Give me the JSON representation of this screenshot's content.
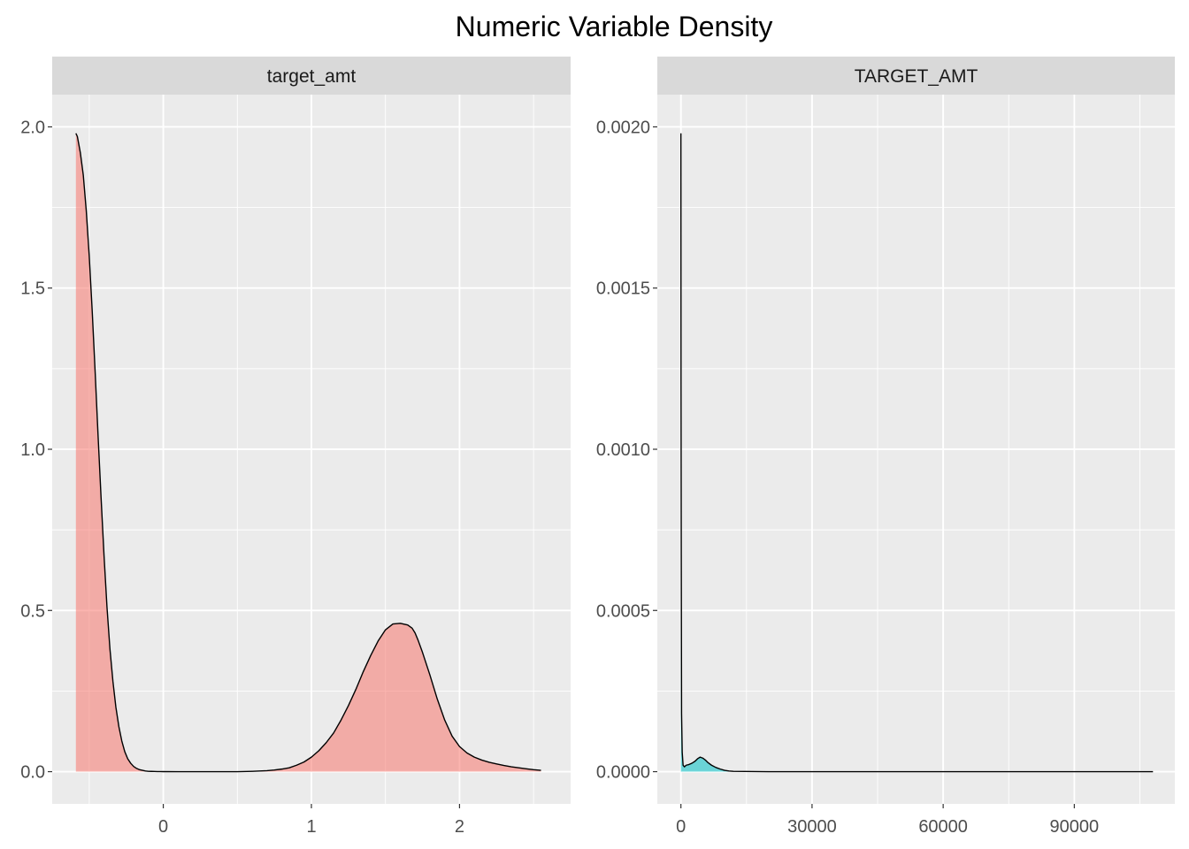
{
  "title": "Numeric Variable Density",
  "colors": {
    "panel_bg": "#ebebeb",
    "strip_bg": "#d9d9d9",
    "grid_major": "#ffffff",
    "tick": "#333333",
    "tick_text": "#4d4d4d",
    "outline": "#000000"
  },
  "chart_data": [
    {
      "type": "area",
      "facet": "target_amt",
      "fill": "#f8766d",
      "fill_opacity": 0.55,
      "xlim": [
        -0.75,
        2.75
      ],
      "ylim": [
        -0.1,
        2.1
      ],
      "x_ticks": [
        0,
        1,
        2
      ],
      "x_minor": [
        -0.5,
        0.5,
        1.5,
        2.5
      ],
      "x_tick_labels": [
        "0",
        "1",
        "2"
      ],
      "y_ticks": [
        0,
        0.5,
        1,
        1.5,
        2
      ],
      "y_minor": [
        0.25,
        0.75,
        1.25,
        1.75
      ],
      "y_tick_labels": [
        "0.0",
        "0.5",
        "1.0",
        "1.5",
        "2.0"
      ],
      "x": [
        -0.59,
        -0.58,
        -0.56,
        -0.54,
        -0.52,
        -0.5,
        -0.48,
        -0.46,
        -0.44,
        -0.42,
        -0.4,
        -0.38,
        -0.36,
        -0.34,
        -0.32,
        -0.3,
        -0.28,
        -0.26,
        -0.24,
        -0.22,
        -0.2,
        -0.18,
        -0.16,
        -0.14,
        -0.12,
        -0.1,
        -0.08,
        -0.06,
        -0.04,
        -0.02,
        0.0,
        0.1,
        0.2,
        0.3,
        0.4,
        0.5,
        0.6,
        0.7,
        0.75,
        0.8,
        0.85,
        0.9,
        0.95,
        1.0,
        1.05,
        1.1,
        1.15,
        1.2,
        1.25,
        1.3,
        1.35,
        1.4,
        1.45,
        1.5,
        1.55,
        1.6,
        1.65,
        1.68,
        1.7,
        1.72,
        1.75,
        1.8,
        1.85,
        1.9,
        1.95,
        2.0,
        2.05,
        2.1,
        2.15,
        2.2,
        2.25,
        2.3,
        2.35,
        2.4,
        2.45,
        2.5,
        2.55
      ],
      "y": [
        1.98,
        1.97,
        1.92,
        1.85,
        1.74,
        1.6,
        1.43,
        1.24,
        1.04,
        0.85,
        0.67,
        0.51,
        0.38,
        0.28,
        0.2,
        0.14,
        0.095,
        0.062,
        0.04,
        0.026,
        0.016,
        0.01,
        0.006,
        0.004,
        0.002,
        0.001,
        0.0008,
        0.0005,
        0.0003,
        0.0002,
        0.0001,
        0.0,
        0.0,
        0.0,
        0.0,
        0.0,
        0.001,
        0.003,
        0.005,
        0.008,
        0.012,
        0.02,
        0.03,
        0.045,
        0.065,
        0.09,
        0.12,
        0.16,
        0.205,
        0.255,
        0.31,
        0.36,
        0.405,
        0.44,
        0.458,
        0.46,
        0.455,
        0.445,
        0.43,
        0.408,
        0.37,
        0.3,
        0.225,
        0.16,
        0.11,
        0.078,
        0.058,
        0.045,
        0.036,
        0.029,
        0.024,
        0.019,
        0.015,
        0.012,
        0.009,
        0.006,
        0.004
      ]
    },
    {
      "type": "area",
      "facet": "TARGET_AMT",
      "fill": "#00bfc4",
      "fill_opacity": 0.55,
      "xlim": [
        -5400,
        113000
      ],
      "ylim": [
        -0.0001,
        0.0021
      ],
      "x_ticks": [
        0,
        30000,
        60000,
        90000
      ],
      "x_minor": [
        15000,
        45000,
        75000,
        105000
      ],
      "x_tick_labels": [
        "0",
        "30000",
        "60000",
        "90000"
      ],
      "y_ticks": [
        0,
        0.0005,
        0.001,
        0.0015,
        0.002
      ],
      "y_minor": [
        0.00025,
        0.00075,
        0.00125,
        0.00175
      ],
      "y_tick_labels": [
        "0.0000",
        "0.0005",
        "0.0010",
        "0.0015",
        "0.0020"
      ],
      "x": [
        0,
        30,
        80,
        150,
        300,
        500,
        800,
        1200,
        1800,
        2500,
        3200,
        3800,
        4400,
        5000,
        5600,
        6200,
        7000,
        8000,
        9000,
        10000,
        11000,
        12000,
        20000,
        40000,
        60000,
        80000,
        100000,
        108000
      ],
      "y": [
        0.00198,
        0.0012,
        0.0007,
        0.00018,
        6e-05,
        2e-05,
        1.5e-05,
        2e-05,
        2.2e-05,
        2.6e-05,
        3.2e-05,
        4e-05,
        4.5e-05,
        4.2e-05,
        3.6e-05,
        2.8e-05,
        2e-05,
        1.3e-05,
        8e-06,
        4e-06,
        2e-06,
        1e-06,
        0.0,
        0.0,
        0.0,
        0.0,
        0.0,
        0.0
      ]
    }
  ]
}
